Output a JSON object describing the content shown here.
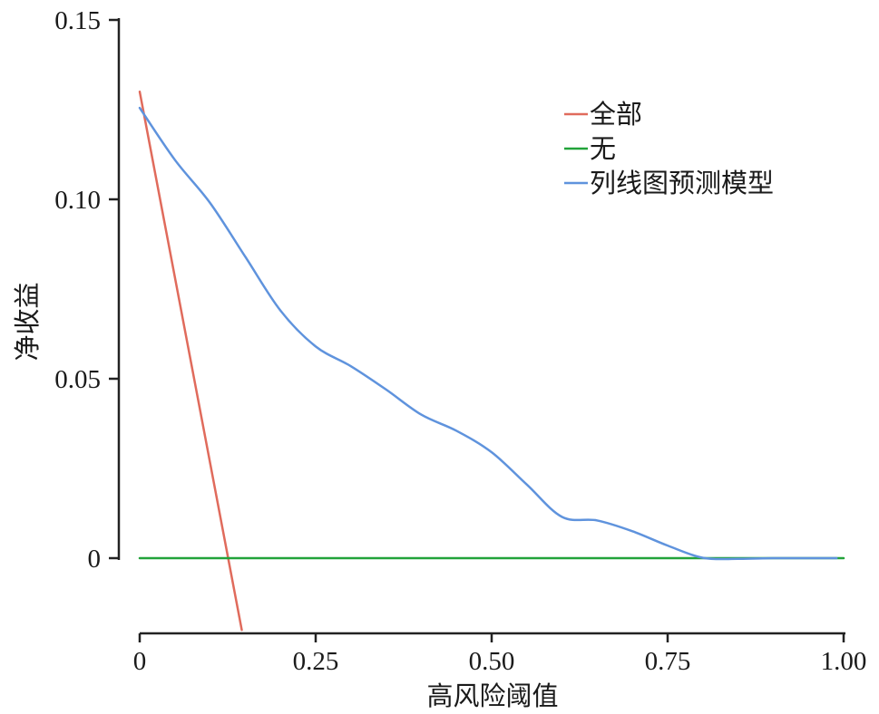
{
  "chart_data": {
    "type": "line",
    "title": "",
    "xlabel": "高风险阈值",
    "ylabel": "净收益",
    "xlim": [
      0,
      1
    ],
    "ylim": [
      -0.02,
      0.15
    ],
    "x_ticks": [
      0,
      0.25,
      0.5,
      0.75,
      1.0
    ],
    "x_tick_labels": [
      "0",
      "0.25",
      "0.50",
      "0.75",
      "1.00"
    ],
    "y_ticks": [
      0,
      0.05,
      0.1,
      0.15
    ],
    "y_tick_labels": [
      "0",
      "0.05",
      "0.10",
      "0.15"
    ],
    "grid": false,
    "legend_position": "top-right",
    "series": [
      {
        "name": "全部",
        "color": "#e06b5c",
        "x": [
          0,
          0.145
        ],
        "y": [
          0.13,
          -0.02
        ]
      },
      {
        "name": "无",
        "color": "#22a33a",
        "x": [
          0,
          1
        ],
        "y": [
          0,
          0
        ]
      },
      {
        "name": "列线图预测模型",
        "color": "#5f93dd",
        "x": [
          0,
          0.05,
          0.1,
          0.15,
          0.2,
          0.25,
          0.3,
          0.35,
          0.4,
          0.45,
          0.5,
          0.55,
          0.6,
          0.65,
          0.7,
          0.75,
          0.8,
          0.85,
          0.9,
          0.95,
          0.99
        ],
        "y": [
          0.1255,
          0.111,
          0.099,
          0.084,
          0.069,
          0.059,
          0.0535,
          0.047,
          0.04,
          0.0355,
          0.0295,
          0.0205,
          0.0115,
          0.0105,
          0.0075,
          0.0035,
          0.0001,
          -0.0002,
          0.0,
          0.0,
          0.0
        ]
      }
    ]
  }
}
